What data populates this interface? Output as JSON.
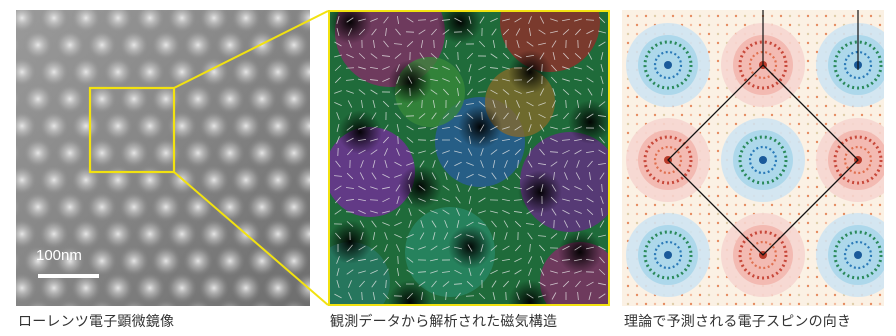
{
  "panels": {
    "lorentz": {
      "caption": "ローレンツ電子顕微鏡像",
      "scale_label": "100nm"
    },
    "observed": {
      "caption": "観測データから解析された磁気構造"
    },
    "theory": {
      "caption": "理論で予測される電子スピンの向き"
    }
  },
  "colors": {
    "zoom_box": "#f2e210",
    "caption_text": "#333333"
  }
}
